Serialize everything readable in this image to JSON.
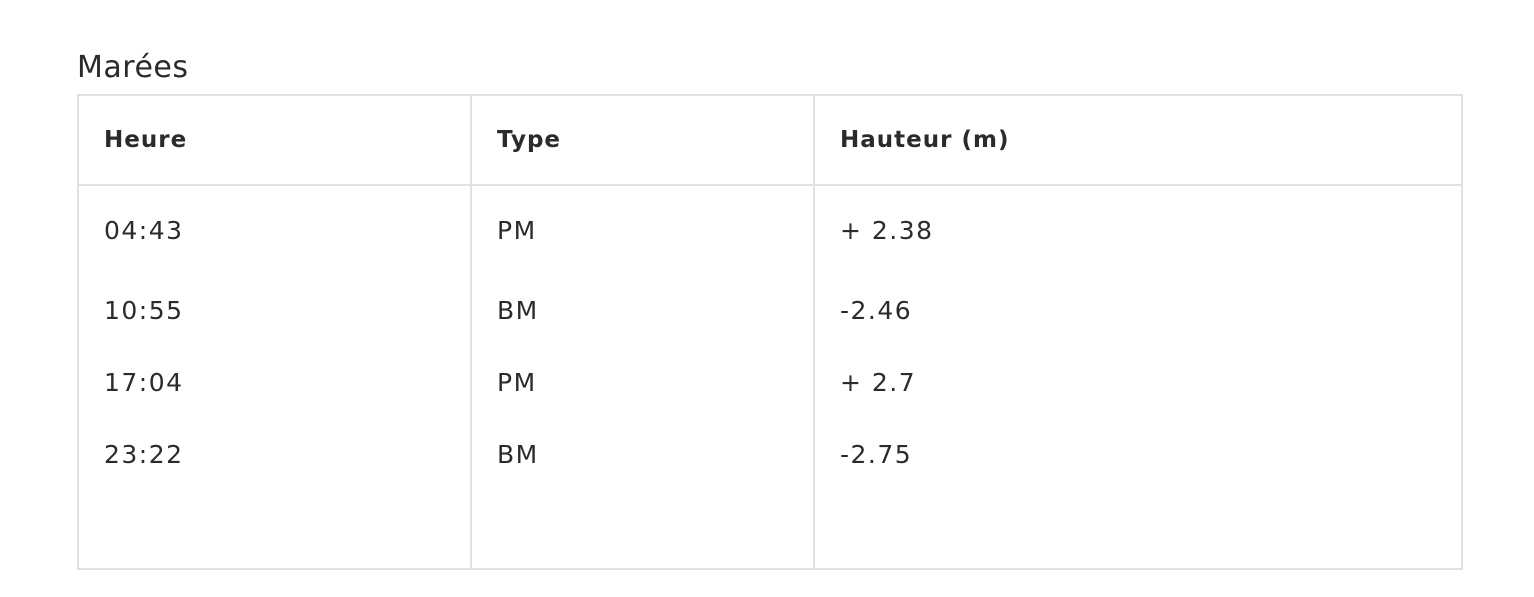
{
  "section": {
    "title": "Marées"
  },
  "table": {
    "headers": [
      "Heure",
      "Type",
      "Hauteur (m)"
    ],
    "rows": [
      [
        "04:43",
        "PM",
        "+ 2.38"
      ],
      [
        "10:55",
        "BM",
        "-2.46"
      ],
      [
        "17:04",
        "PM",
        "+ 2.7"
      ],
      [
        "23:22",
        "BM",
        "-2.75"
      ]
    ]
  },
  "colors": {
    "text": "#2b2b2b",
    "border": "#e1e1e1",
    "background": "#ffffff"
  }
}
